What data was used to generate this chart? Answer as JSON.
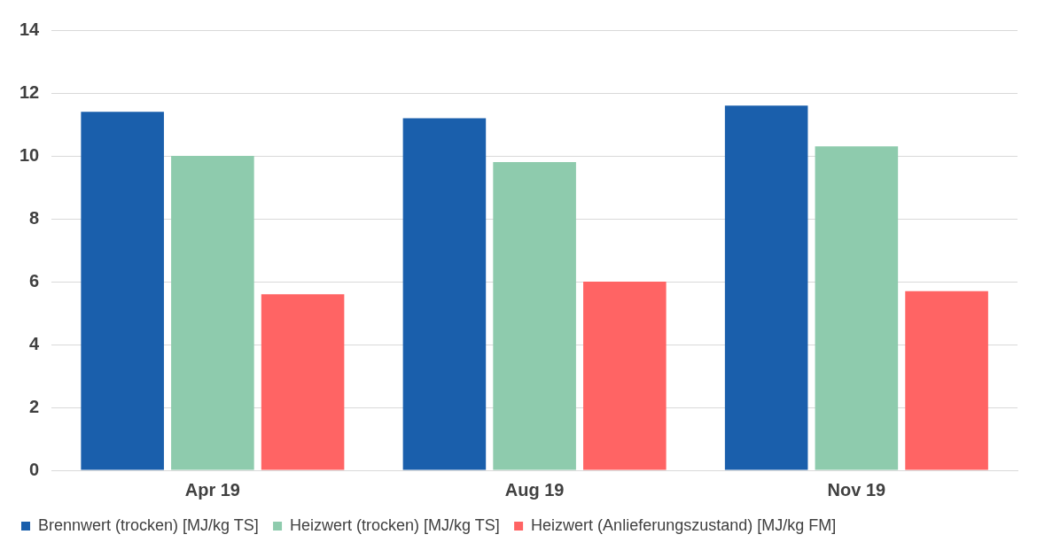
{
  "chart_data": {
    "type": "bar",
    "categories": [
      "Apr 19",
      "Aug 19",
      "Nov 19"
    ],
    "series": [
      {
        "name": "Brennwert (trocken) [MJ/kg TS]",
        "color": "#1a5fac",
        "values": [
          11.4,
          11.2,
          11.6
        ]
      },
      {
        "name": "Heizwert (trocken) [MJ/kg TS]",
        "color": "#8ecbad",
        "values": [
          10.0,
          9.8,
          10.3
        ]
      },
      {
        "name": "Heizwert (Anlieferungszustand) [MJ/kg FM]",
        "color": "#ff6464",
        "values": [
          5.6,
          6.0,
          5.7
        ]
      }
    ],
    "ylim": [
      0,
      14
    ],
    "yticks": [
      0,
      2,
      4,
      6,
      8,
      10,
      12,
      14
    ],
    "grid": "y",
    "legend": "bottom"
  }
}
